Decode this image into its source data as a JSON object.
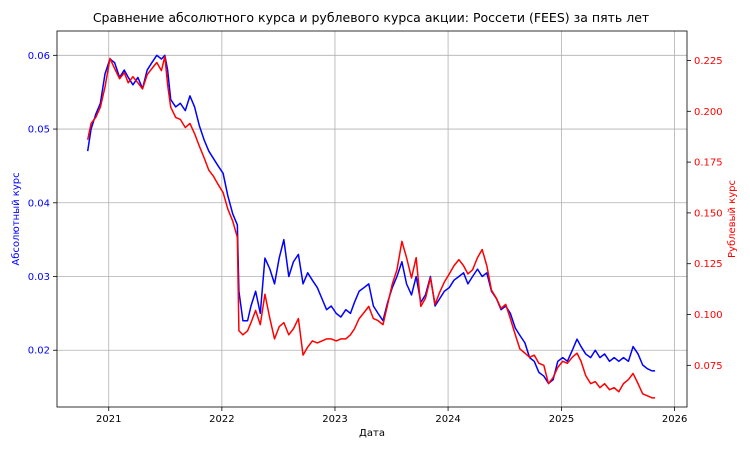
{
  "chart_data": {
    "type": "line",
    "title": "Сравнение абсолютного курса и рублевого курса акции: Россети (FEES) за пять лет",
    "xlabel": "Дата",
    "ylabel_left": "Абсолютный курс",
    "ylabel_right": "Рублевый курс",
    "grid": true,
    "x_range": [
      "2020-07-18",
      "2026-02-10"
    ],
    "x_ticks": [
      {
        "date": "2021-01-01",
        "label": "2021"
      },
      {
        "date": "2022-01-01",
        "label": "2022"
      },
      {
        "date": "2023-01-01",
        "label": "2023"
      },
      {
        "date": "2024-01-01",
        "label": "2024"
      },
      {
        "date": "2025-01-01",
        "label": "2025"
      },
      {
        "date": "2026-01-01",
        "label": "2026"
      }
    ],
    "y_left": {
      "range": [
        0.0123,
        0.0633
      ],
      "ticks": [
        0.02,
        0.03,
        0.04,
        0.05,
        0.06
      ],
      "tick_labels": [
        "0.02",
        "0.03",
        "0.04",
        "0.05",
        "0.06"
      ]
    },
    "y_right": {
      "range": [
        0.0545,
        0.2395
      ],
      "ticks": [
        0.075,
        0.1,
        0.125,
        0.15,
        0.175,
        0.2,
        0.225
      ],
      "tick_labels": [
        "0.075",
        "0.100",
        "0.125",
        "0.150",
        "0.175",
        "0.200",
        "0.225"
      ]
    },
    "series": [
      {
        "axis": "left",
        "color": "#0000ff",
        "points": [
          [
            "2020-10-25",
            0.047
          ],
          [
            "2020-11-05",
            0.05
          ],
          [
            "2020-11-20",
            0.052
          ],
          [
            "2020-12-05",
            0.0535
          ],
          [
            "2020-12-20",
            0.0575
          ],
          [
            "2021-01-05",
            0.0595
          ],
          [
            "2021-01-20",
            0.059
          ],
          [
            "2021-02-05",
            0.057
          ],
          [
            "2021-02-20",
            0.058
          ],
          [
            "2021-03-05",
            0.057
          ],
          [
            "2021-03-20",
            0.056
          ],
          [
            "2021-04-05",
            0.057
          ],
          [
            "2021-04-20",
            0.0555
          ],
          [
            "2021-05-05",
            0.058
          ],
          [
            "2021-05-20",
            0.059
          ],
          [
            "2021-06-05",
            0.06
          ],
          [
            "2021-06-20",
            0.0595
          ],
          [
            "2021-07-01",
            0.06
          ],
          [
            "2021-07-10",
            0.058
          ],
          [
            "2021-07-20",
            0.054
          ],
          [
            "2021-08-05",
            0.053
          ],
          [
            "2021-08-20",
            0.0535
          ],
          [
            "2021-09-05",
            0.0525
          ],
          [
            "2021-09-20",
            0.0545
          ],
          [
            "2021-10-05",
            0.053
          ],
          [
            "2021-10-20",
            0.0505
          ],
          [
            "2021-11-05",
            0.0485
          ],
          [
            "2021-11-20",
            0.047
          ],
          [
            "2021-12-05",
            0.046
          ],
          [
            "2021-12-20",
            0.045
          ],
          [
            "2022-01-05",
            0.044
          ],
          [
            "2022-01-20",
            0.041
          ],
          [
            "2022-02-05",
            0.0385
          ],
          [
            "2022-02-20",
            0.037
          ],
          [
            "2022-02-25",
            0.028
          ],
          [
            "2022-03-10",
            0.024
          ],
          [
            "2022-03-25",
            0.024
          ],
          [
            "2022-04-05",
            0.026
          ],
          [
            "2022-04-20",
            0.028
          ],
          [
            "2022-05-05",
            0.025
          ],
          [
            "2022-05-20",
            0.0325
          ],
          [
            "2022-06-05",
            0.031
          ],
          [
            "2022-06-20",
            0.029
          ],
          [
            "2022-07-05",
            0.0325
          ],
          [
            "2022-07-20",
            0.035
          ],
          [
            "2022-08-05",
            0.03
          ],
          [
            "2022-08-20",
            0.032
          ],
          [
            "2022-09-05",
            0.033
          ],
          [
            "2022-09-20",
            0.029
          ],
          [
            "2022-10-05",
            0.0305
          ],
          [
            "2022-10-20",
            0.0295
          ],
          [
            "2022-11-05",
            0.0285
          ],
          [
            "2022-11-20",
            0.027
          ],
          [
            "2022-12-05",
            0.0255
          ],
          [
            "2022-12-20",
            0.026
          ],
          [
            "2023-01-05",
            0.025
          ],
          [
            "2023-01-20",
            0.0245
          ],
          [
            "2023-02-05",
            0.0255
          ],
          [
            "2023-02-20",
            0.025
          ],
          [
            "2023-03-05",
            0.0265
          ],
          [
            "2023-03-20",
            0.028
          ],
          [
            "2023-04-05",
            0.0285
          ],
          [
            "2023-04-20",
            0.029
          ],
          [
            "2023-05-05",
            0.026
          ],
          [
            "2023-05-20",
            0.025
          ],
          [
            "2023-06-05",
            0.024
          ],
          [
            "2023-06-20",
            0.0265
          ],
          [
            "2023-07-05",
            0.0285
          ],
          [
            "2023-07-20",
            0.03
          ],
          [
            "2023-08-05",
            0.032
          ],
          [
            "2023-08-20",
            0.029
          ],
          [
            "2023-09-05",
            0.0275
          ],
          [
            "2023-09-20",
            0.03
          ],
          [
            "2023-10-05",
            0.0265
          ],
          [
            "2023-10-20",
            0.0275
          ],
          [
            "2023-11-05",
            0.03
          ],
          [
            "2023-11-20",
            0.026
          ],
          [
            "2023-12-05",
            0.027
          ],
          [
            "2023-12-20",
            0.028
          ],
          [
            "2024-01-05",
            0.0285
          ],
          [
            "2024-01-20",
            0.0295
          ],
          [
            "2024-02-05",
            0.03
          ],
          [
            "2024-02-20",
            0.0305
          ],
          [
            "2024-03-05",
            0.029
          ],
          [
            "2024-03-20",
            0.03
          ],
          [
            "2024-04-05",
            0.031
          ],
          [
            "2024-04-20",
            0.03
          ],
          [
            "2024-05-05",
            0.0305
          ],
          [
            "2024-05-20",
            0.028
          ],
          [
            "2024-06-05",
            0.027
          ],
          [
            "2024-06-20",
            0.0255
          ],
          [
            "2024-07-05",
            0.026
          ],
          [
            "2024-07-20",
            0.025
          ],
          [
            "2024-08-05",
            0.023
          ],
          [
            "2024-08-20",
            0.022
          ],
          [
            "2024-09-05",
            0.021
          ],
          [
            "2024-09-20",
            0.019
          ],
          [
            "2024-10-05",
            0.0185
          ],
          [
            "2024-10-20",
            0.017
          ],
          [
            "2024-11-05",
            0.0165
          ],
          [
            "2024-11-20",
            0.0155
          ],
          [
            "2024-12-05",
            0.016
          ],
          [
            "2024-12-20",
            0.0185
          ],
          [
            "2025-01-05",
            0.019
          ],
          [
            "2025-01-20",
            0.0185
          ],
          [
            "2025-02-05",
            0.02
          ],
          [
            "2025-02-20",
            0.0215
          ],
          [
            "2025-03-05",
            0.0205
          ],
          [
            "2025-03-20",
            0.0195
          ],
          [
            "2025-04-05",
            0.019
          ],
          [
            "2025-04-20",
            0.02
          ],
          [
            "2025-05-05",
            0.019
          ],
          [
            "2025-05-20",
            0.0195
          ],
          [
            "2025-06-05",
            0.0185
          ],
          [
            "2025-06-20",
            0.019
          ],
          [
            "2025-07-05",
            0.0185
          ],
          [
            "2025-07-20",
            0.019
          ],
          [
            "2025-08-05",
            0.0185
          ],
          [
            "2025-08-20",
            0.0205
          ],
          [
            "2025-09-05",
            0.0195
          ],
          [
            "2025-09-20",
            0.018
          ],
          [
            "2025-10-05",
            0.0175
          ],
          [
            "2025-10-20",
            0.0172
          ],
          [
            "2025-10-30",
            0.0172
          ]
        ]
      },
      {
        "axis": "right",
        "color": "#ff0000",
        "points": [
          [
            "2020-10-25",
            0.186
          ],
          [
            "2020-11-05",
            0.194
          ],
          [
            "2020-11-20",
            0.197
          ],
          [
            "2020-12-05",
            0.202
          ],
          [
            "2020-12-20",
            0.212
          ],
          [
            "2021-01-05",
            0.226
          ],
          [
            "2021-01-20",
            0.221
          ],
          [
            "2021-02-05",
            0.216
          ],
          [
            "2021-02-20",
            0.219
          ],
          [
            "2021-03-05",
            0.214
          ],
          [
            "2021-03-20",
            0.217
          ],
          [
            "2021-04-05",
            0.214
          ],
          [
            "2021-04-20",
            0.211
          ],
          [
            "2021-05-05",
            0.218
          ],
          [
            "2021-05-20",
            0.221
          ],
          [
            "2021-06-05",
            0.224
          ],
          [
            "2021-06-20",
            0.22
          ],
          [
            "2021-07-01",
            0.227
          ],
          [
            "2021-07-10",
            0.213
          ],
          [
            "2021-07-20",
            0.202
          ],
          [
            "2021-08-05",
            0.197
          ],
          [
            "2021-08-20",
            0.196
          ],
          [
            "2021-09-05",
            0.192
          ],
          [
            "2021-09-20",
            0.194
          ],
          [
            "2021-10-05",
            0.189
          ],
          [
            "2021-10-20",
            0.183
          ],
          [
            "2021-11-05",
            0.177
          ],
          [
            "2021-11-20",
            0.171
          ],
          [
            "2021-12-05",
            0.168
          ],
          [
            "2021-12-20",
            0.164
          ],
          [
            "2022-01-05",
            0.16
          ],
          [
            "2022-01-20",
            0.152
          ],
          [
            "2022-02-05",
            0.146
          ],
          [
            "2022-02-20",
            0.138
          ],
          [
            "2022-02-25",
            0.092
          ],
          [
            "2022-03-10",
            0.09
          ],
          [
            "2022-03-25",
            0.092
          ],
          [
            "2022-04-05",
            0.096
          ],
          [
            "2022-04-20",
            0.102
          ],
          [
            "2022-05-05",
            0.095
          ],
          [
            "2022-05-20",
            0.11
          ],
          [
            "2022-06-05",
            0.098
          ],
          [
            "2022-06-20",
            0.088
          ],
          [
            "2022-07-05",
            0.094
          ],
          [
            "2022-07-20",
            0.096
          ],
          [
            "2022-08-05",
            0.09
          ],
          [
            "2022-08-20",
            0.093
          ],
          [
            "2022-09-05",
            0.098
          ],
          [
            "2022-09-20",
            0.08
          ],
          [
            "2022-10-05",
            0.084
          ],
          [
            "2022-10-20",
            0.087
          ],
          [
            "2022-11-05",
            0.086
          ],
          [
            "2022-11-20",
            0.087
          ],
          [
            "2022-12-05",
            0.088
          ],
          [
            "2022-12-20",
            0.088
          ],
          [
            "2023-01-05",
            0.087
          ],
          [
            "2023-01-20",
            0.088
          ],
          [
            "2023-02-05",
            0.088
          ],
          [
            "2023-02-20",
            0.09
          ],
          [
            "2023-03-05",
            0.093
          ],
          [
            "2023-03-20",
            0.098
          ],
          [
            "2023-04-05",
            0.101
          ],
          [
            "2023-04-20",
            0.104
          ],
          [
            "2023-05-05",
            0.098
          ],
          [
            "2023-05-20",
            0.097
          ],
          [
            "2023-06-05",
            0.095
          ],
          [
            "2023-06-20",
            0.105
          ],
          [
            "2023-07-05",
            0.115
          ],
          [
            "2023-07-20",
            0.122
          ],
          [
            "2023-08-05",
            0.136
          ],
          [
            "2023-08-20",
            0.128
          ],
          [
            "2023-09-05",
            0.118
          ],
          [
            "2023-09-20",
            0.128
          ],
          [
            "2023-10-05",
            0.104
          ],
          [
            "2023-10-20",
            0.108
          ],
          [
            "2023-11-05",
            0.118
          ],
          [
            "2023-11-20",
            0.105
          ],
          [
            "2023-12-05",
            0.111
          ],
          [
            "2023-12-20",
            0.116
          ],
          [
            "2024-01-05",
            0.12
          ],
          [
            "2024-01-20",
            0.124
          ],
          [
            "2024-02-05",
            0.127
          ],
          [
            "2024-02-20",
            0.124
          ],
          [
            "2024-03-05",
            0.12
          ],
          [
            "2024-03-20",
            0.122
          ],
          [
            "2024-04-05",
            0.128
          ],
          [
            "2024-04-20",
            0.132
          ],
          [
            "2024-05-05",
            0.124
          ],
          [
            "2024-05-20",
            0.112
          ],
          [
            "2024-06-05",
            0.108
          ],
          [
            "2024-06-20",
            0.103
          ],
          [
            "2024-07-05",
            0.105
          ],
          [
            "2024-07-20",
            0.098
          ],
          [
            "2024-08-05",
            0.09
          ],
          [
            "2024-08-20",
            0.083
          ],
          [
            "2024-09-05",
            0.081
          ],
          [
            "2024-09-20",
            0.079
          ],
          [
            "2024-10-05",
            0.08
          ],
          [
            "2024-10-20",
            0.076
          ],
          [
            "2024-11-05",
            0.075
          ],
          [
            "2024-11-20",
            0.066
          ],
          [
            "2024-12-05",
            0.069
          ],
          [
            "2024-12-20",
            0.074
          ],
          [
            "2025-01-05",
            0.077
          ],
          [
            "2025-01-20",
            0.076
          ],
          [
            "2025-02-05",
            0.079
          ],
          [
            "2025-02-20",
            0.081
          ],
          [
            "2025-03-05",
            0.077
          ],
          [
            "2025-03-20",
            0.07
          ],
          [
            "2025-04-05",
            0.066
          ],
          [
            "2025-04-20",
            0.067
          ],
          [
            "2025-05-05",
            0.064
          ],
          [
            "2025-05-20",
            0.066
          ],
          [
            "2025-06-05",
            0.063
          ],
          [
            "2025-06-20",
            0.064
          ],
          [
            "2025-07-05",
            0.062
          ],
          [
            "2025-07-20",
            0.066
          ],
          [
            "2025-08-05",
            0.068
          ],
          [
            "2025-08-20",
            0.071
          ],
          [
            "2025-09-05",
            0.066
          ],
          [
            "2025-09-20",
            0.061
          ],
          [
            "2025-10-05",
            0.06
          ],
          [
            "2025-10-20",
            0.059
          ],
          [
            "2025-10-30",
            0.059
          ]
        ]
      }
    ]
  }
}
